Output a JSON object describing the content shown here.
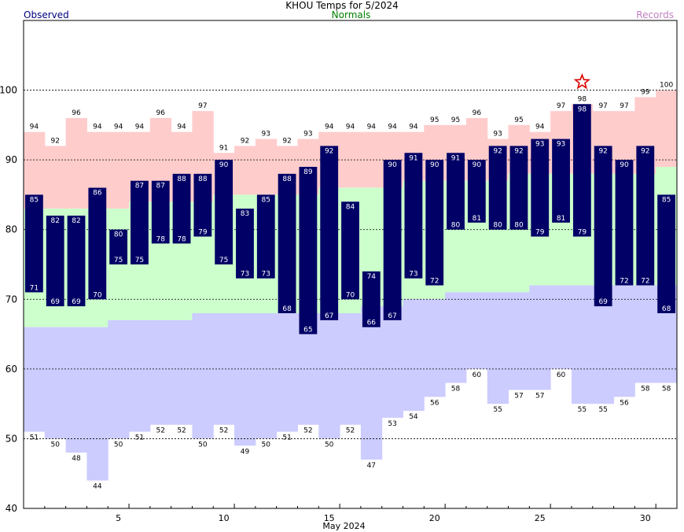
{
  "title": "KHOU Temps for 5/2024",
  "legend": {
    "observed": "Observed",
    "normals": "Normals",
    "records": "Records"
  },
  "colors": {
    "observed": "#000066",
    "normals": "#ccffcc",
    "record_high": "#ffcccc",
    "record_low": "#ccccff",
    "record_marker": "#dd0000"
  },
  "chart_data": {
    "type": "bar",
    "xlabel": "May 2024",
    "ylabel": "",
    "ylim": [
      40,
      110
    ],
    "yticks": [
      40,
      50,
      60,
      70,
      80,
      90,
      100
    ],
    "xticks": [
      5,
      10,
      15,
      20,
      25,
      30
    ],
    "grid": "dashed at 50, 60, 70, 80, 90, 100",
    "days": [
      1,
      2,
      3,
      4,
      5,
      6,
      7,
      8,
      9,
      10,
      11,
      12,
      13,
      14,
      15,
      16,
      17,
      18,
      19,
      20,
      21,
      22,
      23,
      24,
      25,
      26,
      27,
      28,
      29,
      30,
      31
    ],
    "observed_high": [
      85,
      82,
      82,
      86,
      80,
      87,
      87,
      88,
      88,
      90,
      83,
      85,
      88,
      89,
      92,
      84,
      74,
      90,
      91,
      90,
      91,
      90,
      92,
      92,
      93,
      93,
      98,
      92,
      90,
      92,
      85
    ],
    "observed_low": [
      71,
      69,
      69,
      70,
      75,
      75,
      78,
      78,
      79,
      75,
      73,
      73,
      68,
      65,
      67,
      70,
      66,
      67,
      73,
      72,
      80,
      81,
      80,
      80,
      79,
      81,
      79,
      69,
      72,
      72,
      68
    ],
    "normal_high": [
      83,
      83,
      83,
      83,
      83,
      84,
      84,
      84,
      84,
      85,
      85,
      85,
      85,
      85,
      86,
      86,
      86,
      86,
      87,
      87,
      87,
      87,
      87,
      88,
      88,
      88,
      88,
      88,
      88,
      88,
      89
    ],
    "normal_low": [
      66,
      66,
      66,
      66,
      67,
      67,
      67,
      67,
      68,
      68,
      68,
      68,
      68,
      68,
      68,
      68,
      69,
      69,
      70,
      70,
      71,
      71,
      71,
      71,
      72,
      72,
      72,
      72,
      72,
      72,
      72
    ],
    "record_high": [
      94,
      92,
      96,
      94,
      94,
      94,
      96,
      94,
      97,
      91,
      92,
      93,
      92,
      93,
      94,
      94,
      94,
      94,
      94,
      95,
      95,
      96,
      93,
      95,
      94,
      97,
      98,
      97,
      97,
      99,
      100
    ],
    "record_low": [
      51,
      50,
      48,
      44,
      50,
      51,
      52,
      52,
      50,
      52,
      49,
      50,
      51,
      52,
      50,
      52,
      47,
      53,
      54,
      56,
      58,
      60,
      55,
      57,
      57,
      60,
      55,
      55,
      56,
      58,
      58
    ],
    "record_marker_days": [
      27
    ]
  }
}
